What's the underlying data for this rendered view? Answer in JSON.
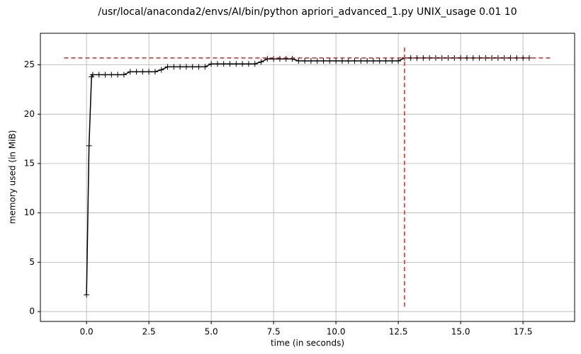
{
  "chart_data": {
    "type": "line",
    "title": "/usr/local/anaconda2/envs/AI/bin/python apriori_advanced_1.py UNIX_usage 0.01 10",
    "x_label": "time (in seconds)",
    "y_label": "memory used (in MiB)",
    "x": [
      0,
      0.1,
      0.2,
      0.25,
      0.5,
      0.75,
      1,
      1.25,
      1.5,
      1.75,
      2,
      2.25,
      2.5,
      2.75,
      3,
      3.25,
      3.5,
      3.75,
      4,
      4.25,
      4.5,
      4.75,
      5,
      5.25,
      5.5,
      5.75,
      6,
      6.25,
      6.5,
      6.75,
      7,
      7.25,
      7.5,
      7.75,
      8,
      8.25,
      8.5,
      8.75,
      9,
      9.25,
      9.5,
      9.75,
      10,
      10.25,
      10.5,
      10.75,
      11,
      11.25,
      11.5,
      11.75,
      12,
      12.25,
      12.5,
      12.75,
      13,
      13.25,
      13.5,
      13.75,
      14,
      14.25,
      14.5,
      14.75,
      15,
      15.25,
      15.5,
      15.75,
      16,
      16.25,
      16.5,
      16.75,
      17,
      17.25,
      17.5,
      17.75
    ],
    "values": [
      1.7,
      16.8,
      23.8,
      24.0,
      24.0,
      24.0,
      24.0,
      24.0,
      24.0,
      24.3,
      24.3,
      24.3,
      24.3,
      24.3,
      24.5,
      24.8,
      24.8,
      24.8,
      24.8,
      24.8,
      24.8,
      24.8,
      25.1,
      25.1,
      25.1,
      25.1,
      25.1,
      25.1,
      25.1,
      25.1,
      25.3,
      25.6,
      25.6,
      25.6,
      25.6,
      25.6,
      25.4,
      25.4,
      25.4,
      25.4,
      25.4,
      25.4,
      25.4,
      25.4,
      25.4,
      25.4,
      25.4,
      25.4,
      25.4,
      25.4,
      25.4,
      25.4,
      25.4,
      25.7,
      25.7,
      25.7,
      25.7,
      25.7,
      25.7,
      25.7,
      25.7,
      25.7,
      25.7,
      25.7,
      25.7,
      25.7,
      25.7,
      25.7,
      25.7,
      25.7,
      25.7,
      25.7,
      25.7,
      25.7
    ],
    "color": "#000000",
    "max_line": {
      "y": 25.7,
      "x": [
        -0.9,
        18.6
      ],
      "color": "#d62728"
    },
    "max_time": {
      "x": 12.75,
      "y": [
        0.5,
        27
      ],
      "color": "#d62728"
    },
    "xlim": [
      -1.85,
      19.57
    ],
    "ylim": [
      -1.0,
      28.2
    ],
    "xticks": [
      {
        "value": 0,
        "label": "0.0"
      },
      2.5,
      {
        "value": 5,
        "label": "5.0"
      },
      7.5,
      {
        "value": 10,
        "label": "10.0"
      },
      12.5,
      {
        "value": 15,
        "label": "15.0"
      },
      17.5
    ],
    "yticks": [
      0,
      5,
      10,
      15,
      20,
      25
    ],
    "grid": true
  }
}
